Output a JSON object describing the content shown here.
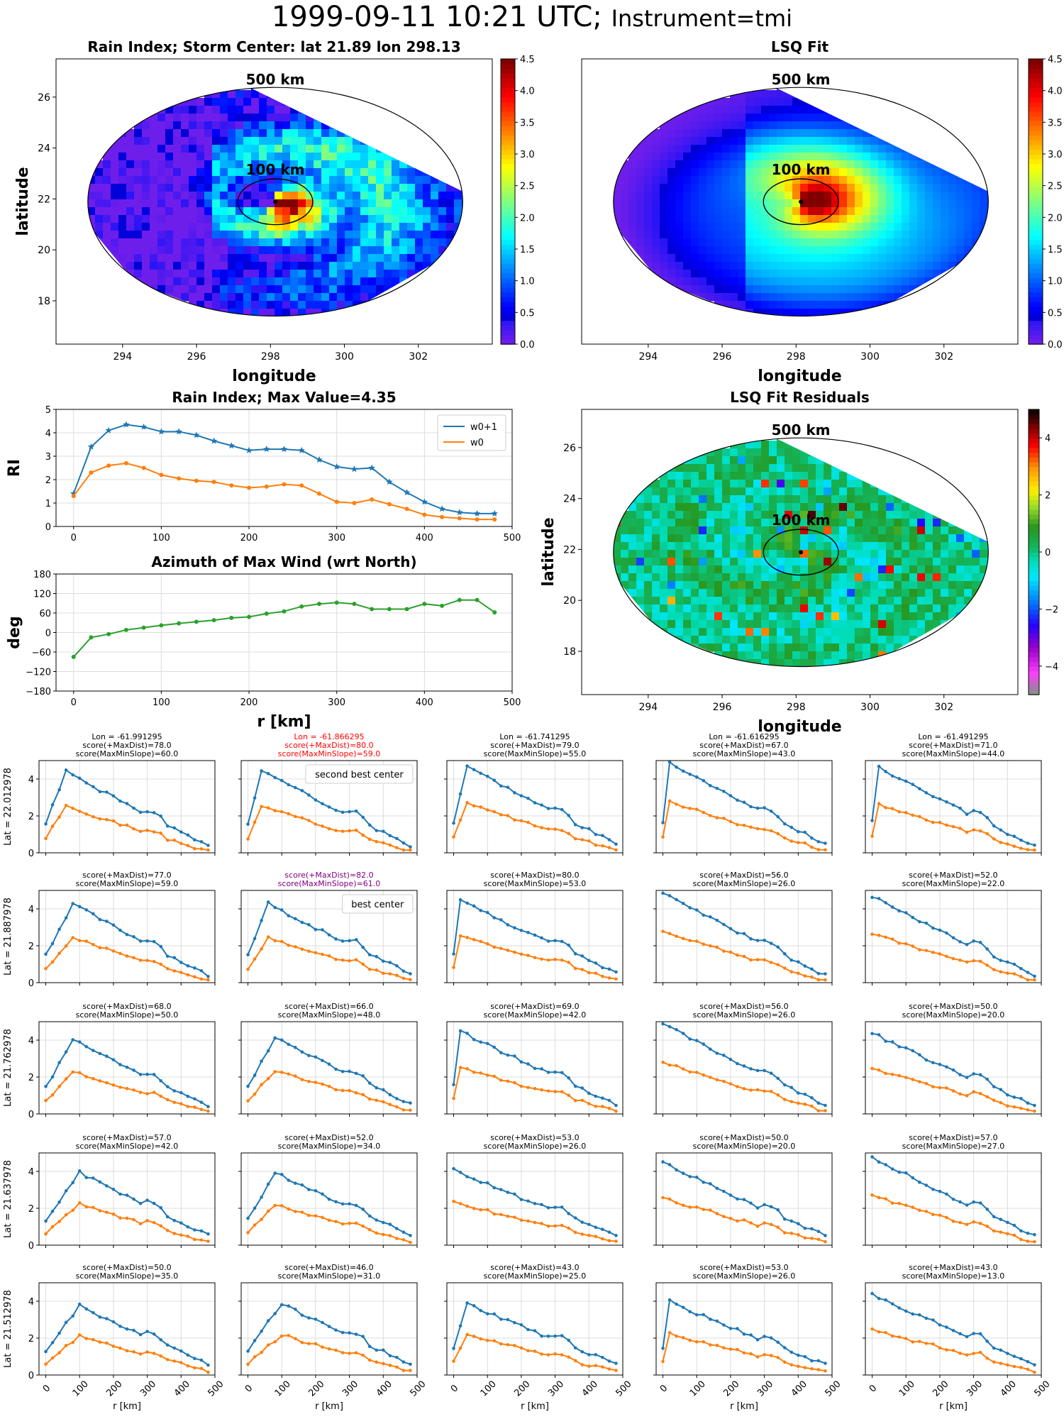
{
  "figure": {
    "title_time": "1999-09-11 10:21 UTC;",
    "title_instrument": "Instrument=tmi"
  },
  "maps": [
    {
      "title": "Rain Index; Storm Center: lat 21.89 lon 298.13",
      "xlabel": "longitude",
      "ylabel": "latitude",
      "x_ticks": [
        "294",
        "296",
        "298",
        "300",
        "302"
      ],
      "y_ticks": [
        "18",
        "20",
        "22",
        "24",
        "26"
      ],
      "ring_labels": [
        "500 km",
        "100 km"
      ],
      "colorbar_ticks": [
        "0.0",
        "0.5",
        "1.0",
        "1.5",
        "2.0",
        "2.5",
        "3.0",
        "3.5",
        "4.0",
        "4.5"
      ],
      "colormap": "jet",
      "storm_center": {
        "lat": 21.89,
        "lon": 298.13
      }
    },
    {
      "title": "LSQ Fit",
      "xlabel": "longitude",
      "ylabel": "",
      "x_ticks": [
        "294",
        "296",
        "298",
        "300",
        "302"
      ],
      "y_ticks": [],
      "ring_labels": [
        "500 km",
        "100 km"
      ],
      "colorbar_ticks": [
        "0.0",
        "0.5",
        "1.0",
        "1.5",
        "2.0",
        "2.5",
        "3.0",
        "3.5",
        "4.0",
        "4.5"
      ],
      "colormap": "jet"
    },
    {
      "title": "LSQ Fit Residuals",
      "xlabel": "longitude",
      "ylabel": "latitude",
      "x_ticks": [
        "294",
        "296",
        "298",
        "300",
        "302"
      ],
      "y_ticks": [
        "18",
        "20",
        "22",
        "24",
        "26"
      ],
      "ring_labels": [
        "500 km",
        "100 km"
      ],
      "colorbar_ticks": [
        "4",
        "2",
        "0",
        "−2",
        "−4"
      ],
      "colormap": "gist_ncar"
    }
  ],
  "chart_data": [
    {
      "type": "line",
      "title": "Rain Index; Max Value=4.35",
      "xlabel": "",
      "ylabel": "RI",
      "xlim": [
        -20,
        500
      ],
      "ylim": [
        0,
        5
      ],
      "x_ticks": [
        "0",
        "100",
        "200",
        "300",
        "400",
        "500"
      ],
      "y_ticks": [
        "0",
        "1",
        "2",
        "3",
        "4",
        "5"
      ],
      "grid": true,
      "legend": "top-right",
      "x": [
        0,
        20,
        40,
        60,
        80,
        100,
        120,
        140,
        160,
        180,
        200,
        220,
        240,
        260,
        280,
        300,
        320,
        340,
        360,
        380,
        400,
        420,
        440,
        460,
        480
      ],
      "series": [
        {
          "name": "w0+1",
          "color": "#1f77b4",
          "marker": "star",
          "values": [
            1.4,
            3.4,
            4.1,
            4.35,
            4.25,
            4.05,
            4.05,
            3.9,
            3.65,
            3.45,
            3.25,
            3.3,
            3.3,
            3.25,
            2.85,
            2.55,
            2.45,
            2.5,
            1.9,
            1.45,
            1.05,
            0.75,
            0.6,
            0.55,
            0.55
          ]
        },
        {
          "name": "w0",
          "color": "#ff7f0e",
          "marker": "dot",
          "values": [
            1.3,
            2.3,
            2.6,
            2.7,
            2.5,
            2.2,
            2.05,
            1.95,
            1.9,
            1.75,
            1.65,
            1.7,
            1.8,
            1.75,
            1.4,
            1.05,
            1.0,
            1.15,
            0.95,
            0.75,
            0.5,
            0.4,
            0.35,
            0.3,
            0.3
          ]
        }
      ]
    },
    {
      "type": "line",
      "title": "Azimuth of Max Wind (wrt North)",
      "xlabel": "r [km]",
      "ylabel": "deg",
      "xlim": [
        -20,
        500
      ],
      "ylim": [
        -180,
        180
      ],
      "x_ticks": [
        "0",
        "100",
        "200",
        "300",
        "400",
        "500"
      ],
      "y_ticks": [
        "180",
        "120",
        "60",
        "0",
        "−60",
        "−120",
        "−180"
      ],
      "grid": true,
      "x": [
        0,
        20,
        40,
        60,
        80,
        100,
        120,
        140,
        160,
        180,
        200,
        220,
        240,
        260,
        280,
        300,
        320,
        340,
        360,
        380,
        400,
        420,
        440,
        460,
        480
      ],
      "series": [
        {
          "name": "",
          "color": "#2ca02c",
          "marker": "dot",
          "values": [
            -75,
            -15,
            -5,
            8,
            15,
            22,
            28,
            33,
            38,
            45,
            48,
            58,
            65,
            80,
            88,
            92,
            88,
            72,
            72,
            72,
            88,
            82,
            100,
            100,
            62
          ]
        }
      ]
    },
    {
      "type": "line",
      "grid_rows": 5,
      "grid_cols": 5,
      "xlabel": "r [km]",
      "x_ticks": [
        "0",
        "100",
        "200",
        "300",
        "400",
        "500"
      ],
      "y_ticks": [
        "0",
        "2",
        "4"
      ],
      "xlim": [
        -20,
        500
      ],
      "ylim": [
        0,
        5
      ],
      "row_labels": [
        "Lat = 22.012978",
        "Lat = 21.887978",
        "Lat = 21.762978",
        "Lat = 21.637978",
        "Lat = 21.512978"
      ],
      "panels": [
        {
          "lines": [
            "Lon = -61.991295",
            "score(+MaxDist)=78.0",
            "score(MaxMinSlope)=60.0"
          ],
          "color": "#000000",
          "seed": 1,
          "peak": 4.45,
          "pr": 60,
          "tail": 0.35,
          "legend": ""
        },
        {
          "lines": [
            "Lon = -61.866295",
            "score(+MaxDist)=80.0",
            "score(MaxMinSlope)=59.0"
          ],
          "color": "#ff0000",
          "seed": 2,
          "peak": 4.5,
          "pr": 40,
          "tail": 0.4,
          "legend": "second best center"
        },
        {
          "lines": [
            "Lon = -61.741295",
            "score(+MaxDist)=79.0",
            "score(MaxMinSlope)=55.0"
          ],
          "color": "#000000",
          "seed": 3,
          "peak": 4.75,
          "pr": 40,
          "tail": 0.5,
          "legend": ""
        },
        {
          "lines": [
            "Lon = -61.616295",
            "score(+MaxDist)=67.0",
            "score(MaxMinSlope)=43.0"
          ],
          "color": "#000000",
          "seed": 4,
          "peak": 4.9,
          "pr": 20,
          "tail": 0.5,
          "legend": ""
        },
        {
          "lines": [
            "Lon = -61.491295",
            "score(+MaxDist)=71.0",
            "score(MaxMinSlope)=44.0"
          ],
          "color": "#000000",
          "seed": 5,
          "peak": 4.8,
          "pr": 5,
          "tail": 0.35,
          "legend": ""
        },
        {
          "lines": [
            "score(+MaxDist)=77.0",
            "score(MaxMinSlope)=59.0"
          ],
          "color": "#000000",
          "seed": 6,
          "peak": 4.3,
          "pr": 80,
          "tail": 0.4,
          "legend": ""
        },
        {
          "lines": [
            "score(+MaxDist)=82.0",
            "score(MaxMinSlope)=61.0"
          ],
          "color": "#800080",
          "seed": 7,
          "peak": 4.3,
          "pr": 60,
          "tail": 0.5,
          "legend": "best center"
        },
        {
          "lines": [
            "score(+MaxDist)=80.0",
            "score(MaxMinSlope)=53.0"
          ],
          "color": "#000000",
          "seed": 8,
          "peak": 4.5,
          "pr": 20,
          "tail": 0.55,
          "legend": ""
        },
        {
          "lines": [
            "score(+MaxDist)=56.0",
            "score(MaxMinSlope)=26.0"
          ],
          "color": "#000000",
          "seed": 9,
          "peak": 4.9,
          "pr": 0,
          "tail": 0.4,
          "legend": ""
        },
        {
          "lines": [
            "score(+MaxDist)=52.0",
            "score(MaxMinSlope)=22.0"
          ],
          "color": "#000000",
          "seed": 10,
          "peak": 4.7,
          "pr": 0,
          "tail": 0.4,
          "legend": ""
        },
        {
          "lines": [
            "score(+MaxDist)=68.0",
            "score(MaxMinSlope)=50.0"
          ],
          "color": "#000000",
          "seed": 11,
          "peak": 4.05,
          "pr": 80,
          "tail": 0.4,
          "legend": ""
        },
        {
          "lines": [
            "score(+MaxDist)=66.0",
            "score(MaxMinSlope)=48.0"
          ],
          "color": "#000000",
          "seed": 12,
          "peak": 4.15,
          "pr": 80,
          "tail": 0.55,
          "legend": ""
        },
        {
          "lines": [
            "score(+MaxDist)=69.0",
            "score(MaxMinSlope)=42.0"
          ],
          "color": "#000000",
          "seed": 13,
          "peak": 4.5,
          "pr": 20,
          "tail": 0.55,
          "legend": ""
        },
        {
          "lines": [
            "score(+MaxDist)=56.0",
            "score(MaxMinSlope)=26.0"
          ],
          "color": "#000000",
          "seed": 14,
          "peak": 4.9,
          "pr": 0,
          "tail": 0.5,
          "legend": ""
        },
        {
          "lines": [
            "score(+MaxDist)=50.0",
            "score(MaxMinSlope)=20.0"
          ],
          "color": "#000000",
          "seed": 15,
          "peak": 4.4,
          "pr": 0,
          "tail": 0.45,
          "legend": ""
        },
        {
          "lines": [
            "score(+MaxDist)=57.0",
            "score(MaxMinSlope)=42.0"
          ],
          "color": "#000000",
          "seed": 16,
          "peak": 3.95,
          "pr": 100,
          "tail": 0.55,
          "legend": ""
        },
        {
          "lines": [
            "score(+MaxDist)=52.0",
            "score(MaxMinSlope)=34.0"
          ],
          "color": "#000000",
          "seed": 17,
          "peak": 3.95,
          "pr": 80,
          "tail": 0.6,
          "legend": ""
        },
        {
          "lines": [
            "score(+MaxDist)=53.0",
            "score(MaxMinSlope)=26.0"
          ],
          "color": "#000000",
          "seed": 18,
          "peak": 4.1,
          "pr": 0,
          "tail": 0.55,
          "legend": ""
        },
        {
          "lines": [
            "score(+MaxDist)=50.0",
            "score(MaxMinSlope)=20.0"
          ],
          "color": "#000000",
          "seed": 19,
          "peak": 4.5,
          "pr": 0,
          "tail": 0.5,
          "legend": ""
        },
        {
          "lines": [
            "score(+MaxDist)=57.0",
            "score(MaxMinSlope)=27.0"
          ],
          "color": "#000000",
          "seed": 20,
          "peak": 4.8,
          "pr": 0,
          "tail": 0.5,
          "legend": ""
        },
        {
          "lines": [
            "score(+MaxDist)=50.0",
            "score(MaxMinSlope)=35.0"
          ],
          "color": "#000000",
          "seed": 21,
          "peak": 3.75,
          "pr": 100,
          "tail": 0.6,
          "legend": ""
        },
        {
          "lines": [
            "score(+MaxDist)=46.0",
            "score(MaxMinSlope)=31.0"
          ],
          "color": "#000000",
          "seed": 22,
          "peak": 3.9,
          "pr": 100,
          "tail": 0.6,
          "legend": ""
        },
        {
          "lines": [
            "score(+MaxDist)=43.0",
            "score(MaxMinSlope)=25.0"
          ],
          "color": "#000000",
          "seed": 23,
          "peak": 3.9,
          "pr": 40,
          "tail": 0.6,
          "legend": ""
        },
        {
          "lines": [
            "score(+MaxDist)=53.0",
            "score(MaxMinSlope)=26.0"
          ],
          "color": "#000000",
          "seed": 24,
          "peak": 4.0,
          "pr": 20,
          "tail": 0.55,
          "legend": ""
        },
        {
          "lines": [
            "score(+MaxDist)=43.0",
            "score(MaxMinSlope)=13.0"
          ],
          "color": "#000000",
          "seed": 25,
          "peak": 4.4,
          "pr": 0,
          "tail": 0.6,
          "legend": ""
        }
      ]
    }
  ]
}
